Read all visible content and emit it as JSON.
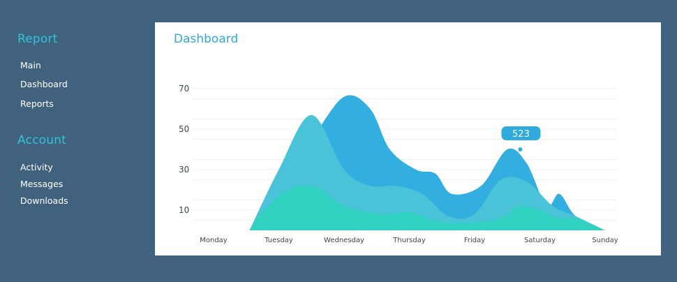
{
  "sidebar": {
    "sections": [
      {
        "title": "Report",
        "items": [
          "Main",
          "Dashboard",
          "Reports"
        ]
      },
      {
        "title": "Account",
        "items": [
          "Activity",
          "Messages",
          "Downloads"
        ]
      }
    ]
  },
  "panel": {
    "title": "Dashboard"
  },
  "colors": {
    "background": "#40627f",
    "accent": "#33c3d8",
    "series_back": "#33aee0",
    "series_middle": "#4ac3d9",
    "series_front": "#31d1c2",
    "callout": "#2eaadb"
  },
  "chart_data": {
    "type": "area",
    "categories": [
      "Monday",
      "Tuesday",
      "Wednesday",
      "Thursday",
      "Friday",
      "Saturday",
      "Sunday"
    ],
    "yticks": [
      10,
      30,
      50,
      70
    ],
    "ylim": [
      0,
      70
    ],
    "grid": true,
    "series": [
      {
        "x": [
          0.55,
          0.9,
          1.5,
          2.0,
          2.4,
          2.7,
          3.1,
          3.4,
          3.65,
          4.1,
          4.5,
          4.8,
          5.1,
          5.3,
          5.55,
          6.0
        ],
        "values": [
          0,
          20,
          45,
          66,
          60,
          40,
          30,
          28,
          18,
          22,
          40,
          33,
          12,
          18,
          7,
          0
        ]
      },
      {
        "x": [
          0.55,
          1.0,
          1.5,
          2.0,
          2.4,
          2.8,
          3.2,
          3.6,
          4.0,
          4.4,
          4.8,
          5.2,
          5.55,
          6.0
        ],
        "values": [
          0,
          30,
          57,
          30,
          22,
          22,
          18,
          7,
          8,
          25,
          24,
          12,
          7,
          0
        ]
      },
      {
        "x": [
          0.55,
          0.8,
          1.2,
          1.6,
          2.0,
          2.6,
          3.0,
          3.5,
          4.0,
          4.4,
          4.7,
          5.0,
          5.3,
          5.55,
          6.0
        ],
        "values": [
          0,
          11,
          21,
          21,
          12,
          8,
          9,
          4,
          4,
          6,
          12,
          10,
          6,
          6,
          0
        ]
      }
    ],
    "callout": {
      "label": "523",
      "x": 4.7,
      "y": 40
    }
  }
}
